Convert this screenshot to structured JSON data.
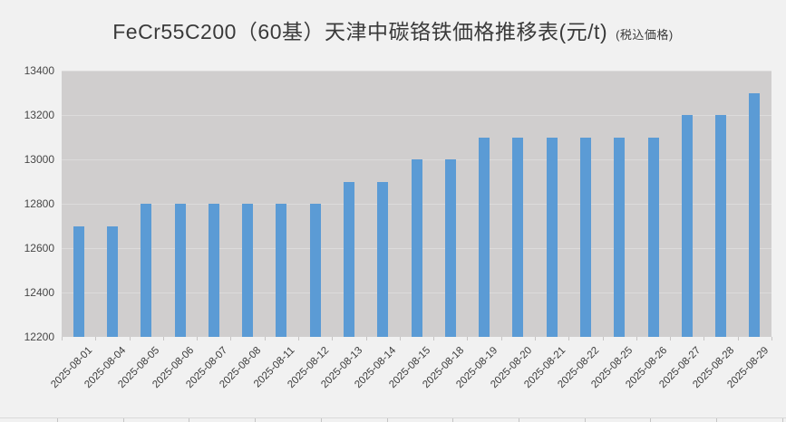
{
  "title": {
    "main": "FeCr55C200（60基）天津中碳铬铁価格推移表(元/t)",
    "suffix": "(税込価格)"
  },
  "chart_data": {
    "type": "bar",
    "title": "FeCr55C200（60基）天津中碳铬铁価格推移表(元/t) (税込価格)",
    "categories": [
      "2025-08-01",
      "2025-08-04",
      "2025-08-05",
      "2025-08-06",
      "2025-08-07",
      "2025-08-08",
      "2025-08-11",
      "2025-08-12",
      "2025-08-13",
      "2025-08-14",
      "2025-08-15",
      "2025-08-18",
      "2025-08-19",
      "2025-08-20",
      "2025-08-21",
      "2025-08-22",
      "2025-08-25",
      "2025-08-26",
      "2025-08-27",
      "2025-08-28",
      "2025-08-29"
    ],
    "values": [
      12700,
      12700,
      12800,
      12800,
      12800,
      12800,
      12800,
      12800,
      12900,
      12900,
      13000,
      13000,
      13100,
      13100,
      13100,
      13100,
      13100,
      13100,
      13200,
      13200,
      13300
    ],
    "xlabel": "",
    "ylabel": "",
    "ylim": [
      12200,
      13400
    ],
    "yticks": [
      13400,
      13200,
      13000,
      12800,
      12600,
      12400,
      12200
    ],
    "grid": true,
    "legend": "none",
    "colors": {
      "bar": "#5b9bd5",
      "plot_background": "#d0cece",
      "page_background": "#f1f1f1",
      "gridline": "#dcdbdb",
      "label_text": "#3c3c3c"
    }
  }
}
